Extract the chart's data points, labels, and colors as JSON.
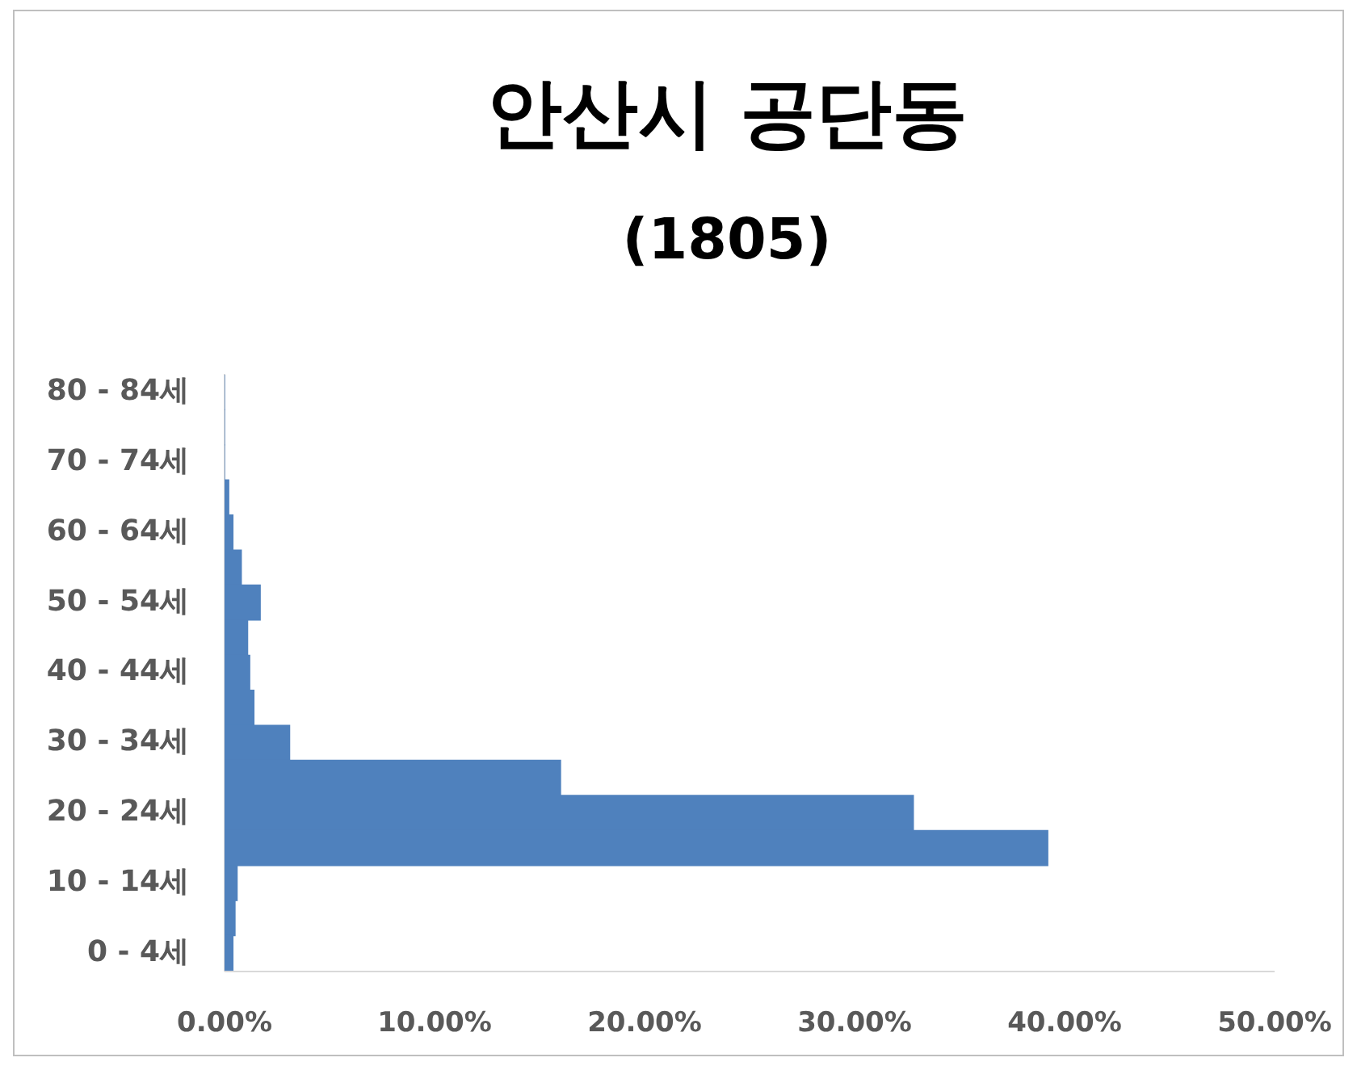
{
  "chart_data": {
    "type": "bar",
    "orientation": "horizontal",
    "title": "안산시 공단동",
    "subtitle": "(1805)",
    "categories": [
      "80 - 84세",
      null,
      "70 - 74세",
      null,
      "60 - 64세",
      null,
      "50 - 54세",
      null,
      "40 - 44세",
      null,
      "30 - 34세",
      null,
      "20 - 24세",
      null,
      "10 - 14세",
      null,
      "0 - 4세"
    ],
    "values": [
      0,
      0,
      0,
      0.2,
      0.4,
      0.8,
      1.7,
      1.1,
      1.2,
      1.4,
      3.1,
      16.0,
      32.8,
      39.2,
      0.6,
      0.5,
      0.4
    ],
    "color": "#4f81bd",
    "xlim": [
      0,
      50
    ],
    "xticks": [
      {
        "value": 0,
        "label": "0.00%"
      },
      {
        "value": 10,
        "label": "10.00%"
      },
      {
        "value": 20,
        "label": "20.00%"
      },
      {
        "value": 30,
        "label": "30.00%"
      },
      {
        "value": 40,
        "label": "40.00%"
      },
      {
        "value": 50,
        "label": "50.00%"
      }
    ]
  }
}
